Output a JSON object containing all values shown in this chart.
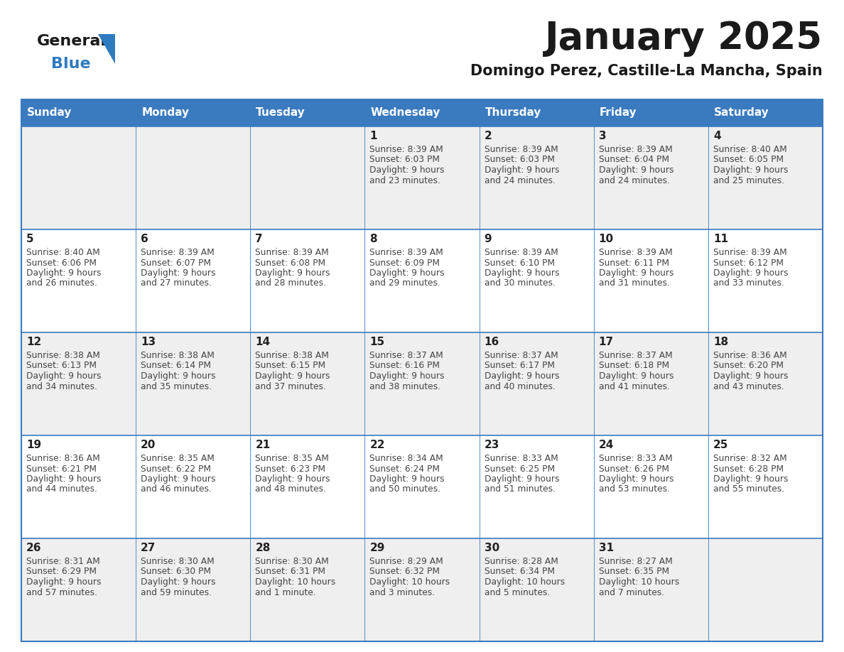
{
  "title": "January 2025",
  "subtitle": "Domingo Perez, Castille-La Mancha, Spain",
  "days_of_week": [
    "Sunday",
    "Monday",
    "Tuesday",
    "Wednesday",
    "Thursday",
    "Friday",
    "Saturday"
  ],
  "header_bg": "#3a7abf",
  "header_text": "#ffffff",
  "cell_bg_row0": "#efefef",
  "cell_bg_row1": "#ffffff",
  "cell_bg_row2": "#efefef",
  "cell_bg_row3": "#ffffff",
  "cell_bg_row4": "#efefef",
  "border_color": "#3a7abf",
  "inner_border_color": "#c0c0c0",
  "day_number_color": "#222222",
  "text_color": "#444444",
  "title_color": "#1a1a1a",
  "subtitle_color": "#1a1a1a",
  "logo_general_color": "#1a1a1a",
  "logo_blue_color": "#2e7abf",
  "calendar": [
    [
      {
        "day": "",
        "sunrise": "",
        "sunset": "",
        "daylight": ""
      },
      {
        "day": "",
        "sunrise": "",
        "sunset": "",
        "daylight": ""
      },
      {
        "day": "",
        "sunrise": "",
        "sunset": "",
        "daylight": ""
      },
      {
        "day": "1",
        "sunrise": "8:39 AM",
        "sunset": "6:03 PM",
        "daylight": "9 hours and 23 minutes."
      },
      {
        "day": "2",
        "sunrise": "8:39 AM",
        "sunset": "6:03 PM",
        "daylight": "9 hours and 24 minutes."
      },
      {
        "day": "3",
        "sunrise": "8:39 AM",
        "sunset": "6:04 PM",
        "daylight": "9 hours and 24 minutes."
      },
      {
        "day": "4",
        "sunrise": "8:40 AM",
        "sunset": "6:05 PM",
        "daylight": "9 hours and 25 minutes."
      }
    ],
    [
      {
        "day": "5",
        "sunrise": "8:40 AM",
        "sunset": "6:06 PM",
        "daylight": "9 hours and 26 minutes."
      },
      {
        "day": "6",
        "sunrise": "8:39 AM",
        "sunset": "6:07 PM",
        "daylight": "9 hours and 27 minutes."
      },
      {
        "day": "7",
        "sunrise": "8:39 AM",
        "sunset": "6:08 PM",
        "daylight": "9 hours and 28 minutes."
      },
      {
        "day": "8",
        "sunrise": "8:39 AM",
        "sunset": "6:09 PM",
        "daylight": "9 hours and 29 minutes."
      },
      {
        "day": "9",
        "sunrise": "8:39 AM",
        "sunset": "6:10 PM",
        "daylight": "9 hours and 30 minutes."
      },
      {
        "day": "10",
        "sunrise": "8:39 AM",
        "sunset": "6:11 PM",
        "daylight": "9 hours and 31 minutes."
      },
      {
        "day": "11",
        "sunrise": "8:39 AM",
        "sunset": "6:12 PM",
        "daylight": "9 hours and 33 minutes."
      }
    ],
    [
      {
        "day": "12",
        "sunrise": "8:38 AM",
        "sunset": "6:13 PM",
        "daylight": "9 hours and 34 minutes."
      },
      {
        "day": "13",
        "sunrise": "8:38 AM",
        "sunset": "6:14 PM",
        "daylight": "9 hours and 35 minutes."
      },
      {
        "day": "14",
        "sunrise": "8:38 AM",
        "sunset": "6:15 PM",
        "daylight": "9 hours and 37 minutes."
      },
      {
        "day": "15",
        "sunrise": "8:37 AM",
        "sunset": "6:16 PM",
        "daylight": "9 hours and 38 minutes."
      },
      {
        "day": "16",
        "sunrise": "8:37 AM",
        "sunset": "6:17 PM",
        "daylight": "9 hours and 40 minutes."
      },
      {
        "day": "17",
        "sunrise": "8:37 AM",
        "sunset": "6:18 PM",
        "daylight": "9 hours and 41 minutes."
      },
      {
        "day": "18",
        "sunrise": "8:36 AM",
        "sunset": "6:20 PM",
        "daylight": "9 hours and 43 minutes."
      }
    ],
    [
      {
        "day": "19",
        "sunrise": "8:36 AM",
        "sunset": "6:21 PM",
        "daylight": "9 hours and 44 minutes."
      },
      {
        "day": "20",
        "sunrise": "8:35 AM",
        "sunset": "6:22 PM",
        "daylight": "9 hours and 46 minutes."
      },
      {
        "day": "21",
        "sunrise": "8:35 AM",
        "sunset": "6:23 PM",
        "daylight": "9 hours and 48 minutes."
      },
      {
        "day": "22",
        "sunrise": "8:34 AM",
        "sunset": "6:24 PM",
        "daylight": "9 hours and 50 minutes."
      },
      {
        "day": "23",
        "sunrise": "8:33 AM",
        "sunset": "6:25 PM",
        "daylight": "9 hours and 51 minutes."
      },
      {
        "day": "24",
        "sunrise": "8:33 AM",
        "sunset": "6:26 PM",
        "daylight": "9 hours and 53 minutes."
      },
      {
        "day": "25",
        "sunrise": "8:32 AM",
        "sunset": "6:28 PM",
        "daylight": "9 hours and 55 minutes."
      }
    ],
    [
      {
        "day": "26",
        "sunrise": "8:31 AM",
        "sunset": "6:29 PM",
        "daylight": "9 hours and 57 minutes."
      },
      {
        "day": "27",
        "sunrise": "8:30 AM",
        "sunset": "6:30 PM",
        "daylight": "9 hours and 59 minutes."
      },
      {
        "day": "28",
        "sunrise": "8:30 AM",
        "sunset": "6:31 PM",
        "daylight": "10 hours and 1 minute."
      },
      {
        "day": "29",
        "sunrise": "8:29 AM",
        "sunset": "6:32 PM",
        "daylight": "10 hours and 3 minutes."
      },
      {
        "day": "30",
        "sunrise": "8:28 AM",
        "sunset": "6:34 PM",
        "daylight": "10 hours and 5 minutes."
      },
      {
        "day": "31",
        "sunrise": "8:27 AM",
        "sunset": "6:35 PM",
        "daylight": "10 hours and 7 minutes."
      },
      {
        "day": "",
        "sunrise": "",
        "sunset": "",
        "daylight": ""
      }
    ]
  ]
}
